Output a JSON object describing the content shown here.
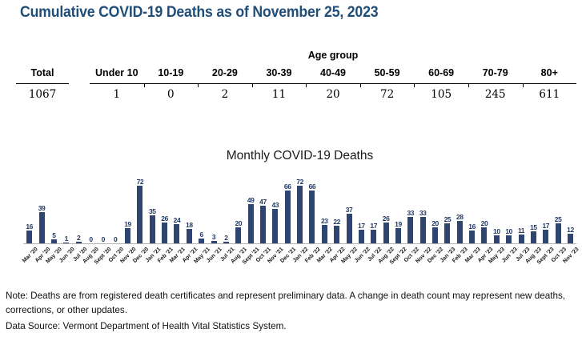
{
  "page": {
    "title": "Cumulative COVID-19 Deaths as of November 25, 2023"
  },
  "summary_table": {
    "group_header": "Age group",
    "columns": [
      "Total",
      "Under 10",
      "10-19",
      "20-29",
      "30-39",
      "40-49",
      "50-59",
      "60-69",
      "70-79",
      "80+"
    ],
    "values": [
      "1067",
      "1",
      "0",
      "2",
      "11",
      "20",
      "72",
      "105",
      "245",
      "611"
    ]
  },
  "chart_data": {
    "type": "bar",
    "title": "Monthly COVID-19 Deaths",
    "categories": [
      "Mar '20",
      "Apr '20",
      "May '20",
      "Jun '20",
      "Jul '20",
      "Aug '20",
      "Sept '20",
      "Oct '20",
      "Nov '20",
      "Dec '20",
      "Jan '21",
      "Feb '21",
      "Mar '21",
      "Apr '21",
      "May '21",
      "Jun '21",
      "Jul '21",
      "Aug '21",
      "Sept '21",
      "Oct '21",
      "Nov '21",
      "Dec '21",
      "Jan '22",
      "Feb '22",
      "Mar '22",
      "Apr '22",
      "May '22",
      "Jun '22",
      "Jul '22",
      "Aug '22",
      "Sept '22",
      "Oct '22",
      "Nov '22",
      "Dec '22",
      "Jan '23",
      "Feb '23",
      "Mar '23",
      "Apr '23",
      "May '23",
      "Jun '23",
      "Jul '23",
      "Aug '23",
      "Sept '23",
      "Oct '23",
      "Nov '23"
    ],
    "values": [
      16,
      39,
      5,
      1,
      2,
      0,
      0,
      0,
      19,
      72,
      35,
      26,
      24,
      18,
      6,
      3,
      2,
      20,
      49,
      47,
      43,
      66,
      72,
      66,
      23,
      22,
      37,
      17,
      17,
      26,
      19,
      33,
      33,
      20,
      25,
      28,
      16,
      20,
      10,
      10,
      11,
      15,
      17,
      25,
      12
    ],
    "xlabel": "",
    "ylabel": "",
    "ylim": [
      0,
      80
    ],
    "grid": false,
    "legend": "none",
    "value_labels": true,
    "bar_color": "#2e4572",
    "value_label_color": "#1f3864",
    "axis_line_color": "#b3b3b3"
  },
  "notes": {
    "note": "Note: Deaths are from registered death certificates and represent preliminary data. A change in death count may represent new deaths, corrections, or other updates.",
    "data_source": "Data Source: Vermont Department of Health Vital Statistics System."
  },
  "colors": {
    "title_blue": "#1f4e79",
    "bar_navy": "#2e4572",
    "table_rule": "#000000"
  }
}
